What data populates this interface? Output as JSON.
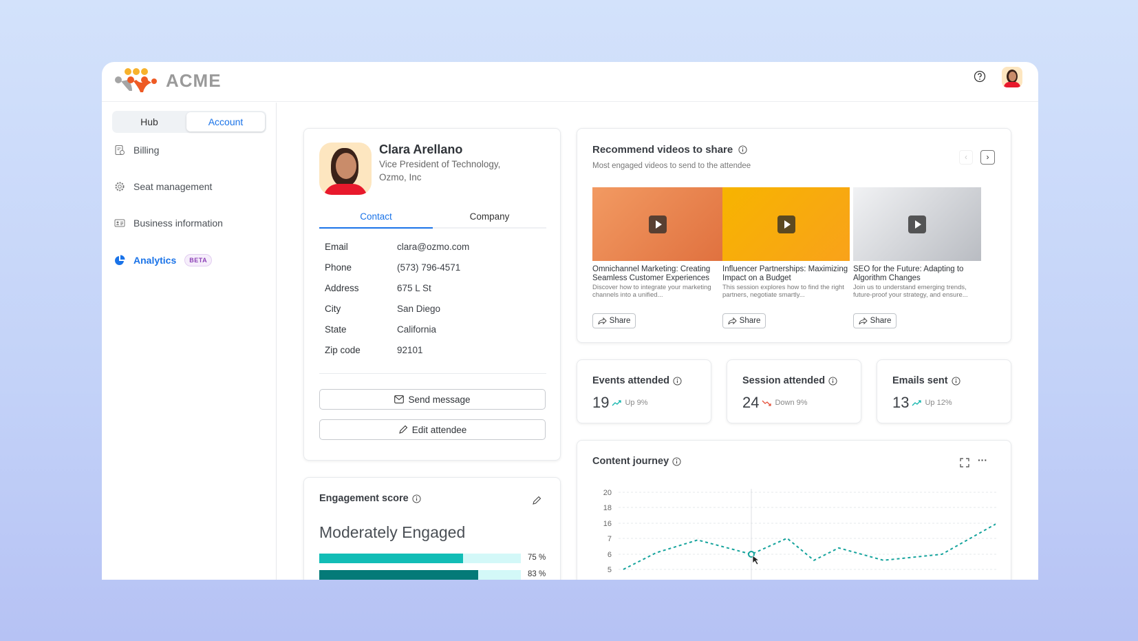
{
  "brand": {
    "name": "ACME"
  },
  "header": {
    "help_icon": "question-circle-icon",
    "avatar": "user-avatar"
  },
  "sidebar": {
    "segments": [
      {
        "label": "Hub",
        "active": false
      },
      {
        "label": "Account",
        "active": true
      }
    ],
    "items": [
      {
        "label": "Billing",
        "icon": "receipt-icon"
      },
      {
        "label": "Seat management",
        "icon": "gear-icon"
      },
      {
        "label": "Business information",
        "icon": "id-card-icon"
      },
      {
        "label": "Analytics",
        "icon": "pie-chart-icon",
        "active": true,
        "badge": "BETA"
      }
    ]
  },
  "profile": {
    "name": "Clara Arellano",
    "title_line1": "Vice President of Technology,",
    "title_line2": "Ozmo, Inc",
    "tabs": [
      "Contact",
      "Company"
    ],
    "active_tab": "Contact",
    "fields": [
      {
        "label": "Email",
        "value": "clara@ozmo.com"
      },
      {
        "label": "Phone",
        "value": "(573) 796-4571"
      },
      {
        "label": "Address",
        "value": "675 L St"
      },
      {
        "label": "City",
        "value": "San Diego"
      },
      {
        "label": "State",
        "value": "California"
      },
      {
        "label": "Zip code",
        "value": "92101"
      }
    ],
    "send_message": "Send message",
    "edit_attendee": "Edit attendee"
  },
  "engagement": {
    "title": "Engagement score",
    "level": "Moderately Engaged",
    "bars": [
      {
        "percent": 75,
        "label": "75 %",
        "color": "#12bdb6"
      },
      {
        "percent": 83,
        "label": "83 %",
        "color": "#047a78"
      }
    ],
    "track_color": "#d3f8f8"
  },
  "videos": {
    "title": "Recommend videos to share",
    "subtitle": "Most engaged videos to send to the attendee",
    "share_label": "Share",
    "items": [
      {
        "title": "Omnichannel Marketing: Creating Seamless Customer Experiences",
        "desc": "Discover how to integrate your marketing channels into a unified..."
      },
      {
        "title": "Influencer Partnerships: Maximizing Impact on a Budget",
        "desc": "This session explores how to find the right partners, negotiate smartly..."
      },
      {
        "title": "SEO for the Future: Adapting to Algorithm Changes",
        "desc": "Join us to understand emerging trends, future-proof your strategy, and ensure..."
      }
    ]
  },
  "stats": [
    {
      "title": "Events attended",
      "value": "19",
      "trend": "up",
      "change": "Up 9%"
    },
    {
      "title": "Session attended",
      "value": "24",
      "trend": "down",
      "change": "Down 9%"
    },
    {
      "title": "Emails sent",
      "value": "13",
      "trend": "up",
      "change": "Up 12%"
    }
  ],
  "colors": {
    "accent": "#1a73e8",
    "up": "#12b5ad",
    "down": "#e5533d",
    "line": "#14a39c"
  },
  "chart_data": {
    "type": "line",
    "title": "Content journey",
    "y_ticks": [
      "20",
      "18",
      "16",
      "7",
      "6",
      "5"
    ],
    "grid": true,
    "series": [
      {
        "values": [
          5,
          6.1,
          6.9,
          6.0,
          7.1,
          5.6,
          6.4,
          5.6,
          6.0,
          15.5
        ]
      }
    ],
    "highlight_index": 3
  }
}
